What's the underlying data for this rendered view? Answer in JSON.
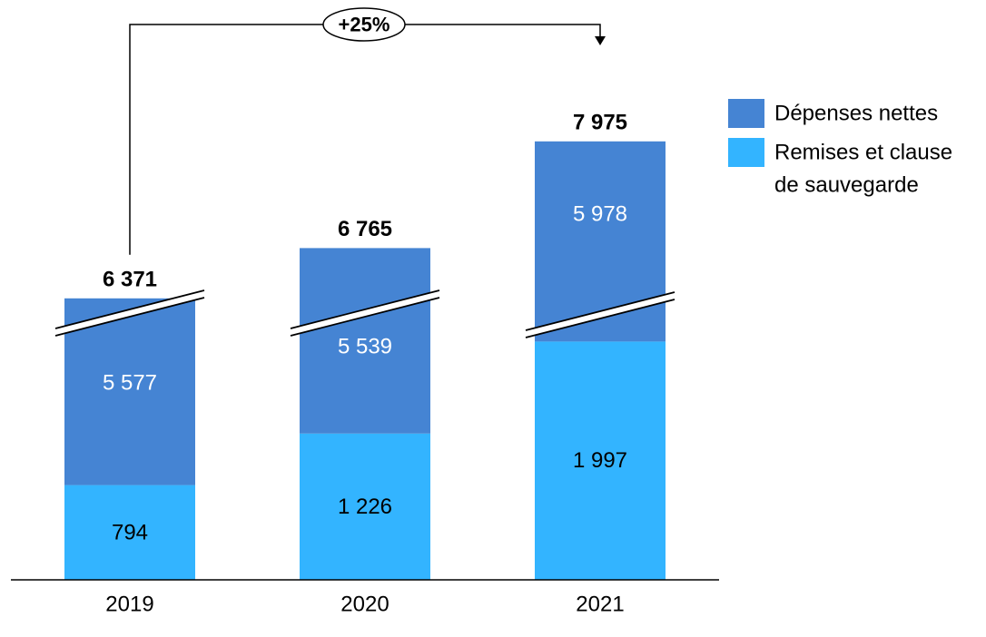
{
  "chart_data": {
    "type": "bar",
    "stacked": true,
    "categories": [
      "2019",
      "2020",
      "2021"
    ],
    "series": [
      {
        "name": "Remises et clause de sauvegarde",
        "values": [
          794,
          1226,
          1997
        ],
        "labels": [
          "794",
          "1 226",
          "1 997"
        ],
        "color": "#33b4ff"
      },
      {
        "name": "Dépenses nettes",
        "values": [
          5577,
          5539,
          5978
        ],
        "labels": [
          "5 577",
          "5 539",
          "5 978"
        ],
        "color": "#4584d3"
      }
    ],
    "totals": [
      6371,
      6765,
      7975
    ],
    "total_labels": [
      "6 371",
      "6 765",
      "7 975"
    ],
    "growth_label": "+25%",
    "legend": {
      "position": "right",
      "items": [
        {
          "lines": [
            "Dépenses nettes"
          ],
          "color": "#4584d3"
        },
        {
          "lines": [
            "Remises et clause",
            "de sauvegarde"
          ],
          "color": "#33b4ff"
        }
      ]
    },
    "axis_break": true,
    "grid": false
  }
}
